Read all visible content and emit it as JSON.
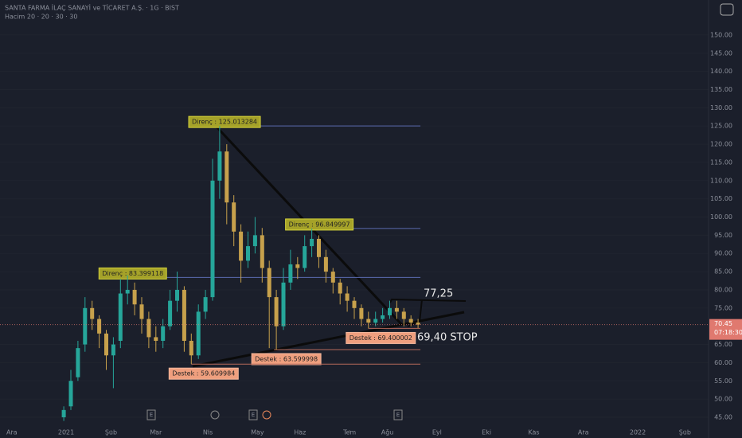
{
  "header": {
    "title": "SANTA FARMA İLAÇ SANAYİ ve TİCARET A.Ş. · 1G · BIST",
    "subtitle": "Hacim 20 · 20 · 30 · 30"
  },
  "chart_data": {
    "type": "candlestick",
    "up_color": "#26a69a",
    "down_color": "#c7a14c",
    "xlim": [
      0,
      300
    ],
    "ylim": [
      41.5,
      159.6
    ],
    "xticks": [
      {
        "value": 5,
        "label": "Ara"
      },
      {
        "value": 28,
        "label": "2021"
      },
      {
        "value": 47,
        "label": "Şub"
      },
      {
        "value": 66,
        "label": "Mar"
      },
      {
        "value": 88,
        "label": "Nis"
      },
      {
        "value": 109,
        "label": "May"
      },
      {
        "value": 127,
        "label": "Haz"
      },
      {
        "value": 148,
        "label": "Tem"
      },
      {
        "value": 164,
        "label": "Ağu"
      },
      {
        "value": 185,
        "label": "Eyl"
      },
      {
        "value": 206,
        "label": "Eki"
      },
      {
        "value": 226,
        "label": "Kas"
      },
      {
        "value": 247,
        "label": "Ara"
      },
      {
        "value": 270,
        "label": "2022"
      },
      {
        "value": 290,
        "label": "Şub"
      }
    ],
    "yticks": [
      {
        "value": 45,
        "label": "45.00"
      },
      {
        "value": 50,
        "label": "50.00"
      },
      {
        "value": 55,
        "label": "55.00"
      },
      {
        "value": 60,
        "label": "60.00"
      },
      {
        "value": 65,
        "label": "65.00"
      },
      {
        "value": 75,
        "label": "75.00"
      },
      {
        "value": 80,
        "label": "80.00"
      },
      {
        "value": 85,
        "label": "85.00"
      },
      {
        "value": 90,
        "label": "90.00"
      },
      {
        "value": 95,
        "label": "95.00"
      },
      {
        "value": 100,
        "label": "100.00"
      },
      {
        "value": 105,
        "label": "105.00"
      },
      {
        "value": 110,
        "label": "110.00"
      },
      {
        "value": 115,
        "label": "115.00"
      },
      {
        "value": 120,
        "label": "120.00"
      },
      {
        "value": 125,
        "label": "125.00"
      },
      {
        "value": 130,
        "label": "130.00"
      },
      {
        "value": 135,
        "label": "135.00"
      },
      {
        "value": 140,
        "label": "140.00"
      },
      {
        "value": 145,
        "label": "145.00"
      },
      {
        "value": 150,
        "label": "150.00"
      }
    ],
    "candles": {
      "x": [
        27,
        30,
        33,
        36,
        39,
        42,
        45,
        48,
        51,
        54,
        57,
        60,
        63,
        66,
        69,
        72,
        75,
        78,
        81,
        84,
        87,
        90,
        93,
        96,
        99,
        102,
        105,
        108,
        111,
        114,
        117,
        120,
        123,
        126,
        129,
        132,
        135,
        138,
        141,
        144,
        147,
        150,
        153,
        156,
        159,
        162,
        165,
        168,
        171,
        174,
        177
      ],
      "open": [
        45,
        48,
        56,
        65,
        75,
        72,
        68,
        62,
        66,
        79,
        80,
        76,
        72,
        67,
        66,
        70,
        77,
        80,
        66,
        62,
        74,
        78,
        110,
        118,
        104,
        96,
        88,
        92,
        95,
        86,
        78,
        70,
        82,
        87,
        86,
        92,
        94,
        89,
        85,
        82,
        79,
        77,
        75,
        72,
        71,
        72,
        73,
        75,
        74,
        72,
        71
      ],
      "high": [
        48,
        58,
        66,
        78,
        77,
        73,
        69,
        67,
        83,
        84,
        82,
        78,
        74,
        70,
        72,
        80,
        85,
        81,
        68,
        76,
        80,
        116,
        125,
        120,
        106,
        98,
        96,
        100,
        97,
        88,
        80,
        86,
        91,
        89,
        95,
        96.8,
        95,
        91,
        86,
        83,
        81,
        78,
        76,
        74,
        74,
        75,
        77,
        77,
        75,
        73,
        72
      ],
      "low": [
        44,
        47,
        55,
        63,
        69,
        64,
        58,
        53,
        64,
        76,
        73,
        68,
        64,
        63,
        64,
        69,
        74,
        63,
        59.6,
        61,
        72,
        77,
        105,
        98,
        92,
        82,
        86,
        90,
        82,
        64,
        63.6,
        69,
        80,
        83,
        85,
        89,
        86,
        82,
        79,
        76,
        74,
        72,
        70,
        69.4,
        70,
        71,
        72,
        72,
        70,
        70,
        69.5
      ],
      "close": [
        47,
        55,
        64,
        75,
        72,
        68,
        62,
        65,
        79,
        80,
        76,
        72,
        67,
        66,
        70,
        77,
        80,
        66,
        62,
        74,
        78,
        110,
        118,
        104,
        96,
        88,
        92,
        95,
        86,
        78,
        70,
        82,
        87,
        86,
        92,
        94,
        89,
        85,
        82,
        79,
        77,
        75,
        72,
        71,
        72,
        73,
        75,
        74,
        72,
        71,
        70.45
      ]
    },
    "levels": [
      {
        "label": "Direnç : 125.013284",
        "value": 125.013284,
        "x": [
          90,
          178
        ],
        "kind": "resistance"
      },
      {
        "label": "Direnç : 96.849997",
        "value": 96.849997,
        "x": [
          131,
          178
        ],
        "kind": "resistance"
      },
      {
        "label": "Direnç : 83.399118",
        "value": 83.399118,
        "x": [
          52,
          178
        ],
        "kind": "resistance"
      },
      {
        "label": "Destek : 63.599998",
        "value": 63.599998,
        "x": [
          116,
          178
        ],
        "kind": "support"
      },
      {
        "label": "Destek : 59.609984",
        "value": 59.609984,
        "x": [
          81,
          178
        ],
        "kind": "support"
      },
      {
        "label": "Destek : 69.400002",
        "value": 69.400002,
        "x": [
          156,
          178
        ],
        "kind": "support"
      }
    ],
    "annotations": [
      "77,25",
      "69,40 STOP"
    ],
    "last_price": 70.45,
    "countdown": "07:18:30",
    "event_markers": [
      "E",
      "E",
      "E"
    ]
  }
}
